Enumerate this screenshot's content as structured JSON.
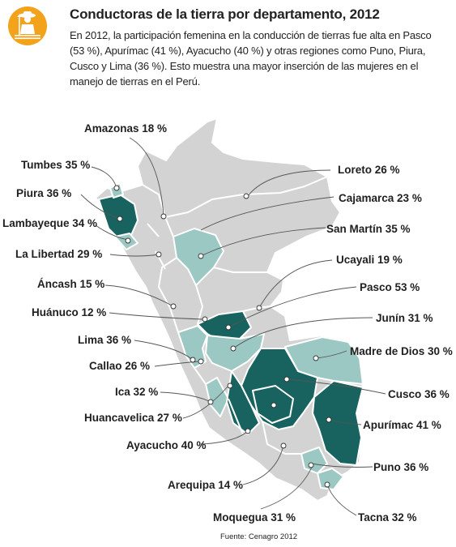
{
  "title": "Conductoras de la tierra por departamento, 2012",
  "description": "En 2012, la participación femenina en la conducción de tierras fue alta en Pasco (53 %), Apurímac (41 %), Ayacucho (40 %) y otras regiones como Puno, Piura, Cusco y Lima (36 %). Esto muestra una mayor inserción de las mujeres en el manejo de tierras en el Perú.",
  "source": "Fuente: Cenagro 2012",
  "icon": "farmer-woman-icon",
  "colors": {
    "accent": "#f2a31b",
    "light": "#d3d3d3",
    "medium": "#9cc8c3",
    "dark": "#18635f",
    "border": "#ffffff"
  },
  "regions": [
    {
      "name": "Amazonas",
      "label": "Amazonas 18 %",
      "value": 18
    },
    {
      "name": "Tumbes",
      "label": "Tumbes 35 %",
      "value": 35
    },
    {
      "name": "Piura",
      "label": "Piura 36 %",
      "value": 36
    },
    {
      "name": "Lambayeque",
      "label": "Lambayeque 34 %",
      "value": 34
    },
    {
      "name": "La Libertad",
      "label": "La Libertad 29 %",
      "value": 29
    },
    {
      "name": "Áncash",
      "label": "Áncash 15 %",
      "value": 15
    },
    {
      "name": "Huánuco",
      "label": "Huánuco 12 %",
      "value": 12
    },
    {
      "name": "Lima",
      "label": "Lima 36 %",
      "value": 36
    },
    {
      "name": "Callao",
      "label": "Callao 26 %",
      "value": 26
    },
    {
      "name": "Ica",
      "label": "Ica 32 %",
      "value": 32
    },
    {
      "name": "Huancavelica",
      "label": "Huancavelica 27 %",
      "value": 27
    },
    {
      "name": "Ayacucho",
      "label": "Ayacucho 40 %",
      "value": 40
    },
    {
      "name": "Arequipa",
      "label": "Arequipa 14 %",
      "value": 14
    },
    {
      "name": "Moquegua",
      "label": "Moquegua 31 %",
      "value": 31
    },
    {
      "name": "Loreto",
      "label": "Loreto 26 %",
      "value": 26
    },
    {
      "name": "Cajamarca",
      "label": "Cajamarca 23 %",
      "value": 23
    },
    {
      "name": "San Martín",
      "label": "San Martín 35 %",
      "value": 35
    },
    {
      "name": "Ucayali",
      "label": "Ucayali 19 %",
      "value": 19
    },
    {
      "name": "Pasco",
      "label": "Pasco 53 %",
      "value": 53
    },
    {
      "name": "Junín",
      "label": "Junín 31 %",
      "value": 31
    },
    {
      "name": "Madre de Dios",
      "label": "Madre de Dios 30 %",
      "value": 30
    },
    {
      "name": "Cusco",
      "label": "Cusco 36 %",
      "value": 36
    },
    {
      "name": "Apurímac",
      "label": "Apurímac 41 %",
      "value": 41
    },
    {
      "name": "Puno",
      "label": "Puno 36 %",
      "value": 36
    },
    {
      "name": "Tacna",
      "label": "Tacna 32 %",
      "value": 32
    }
  ]
}
